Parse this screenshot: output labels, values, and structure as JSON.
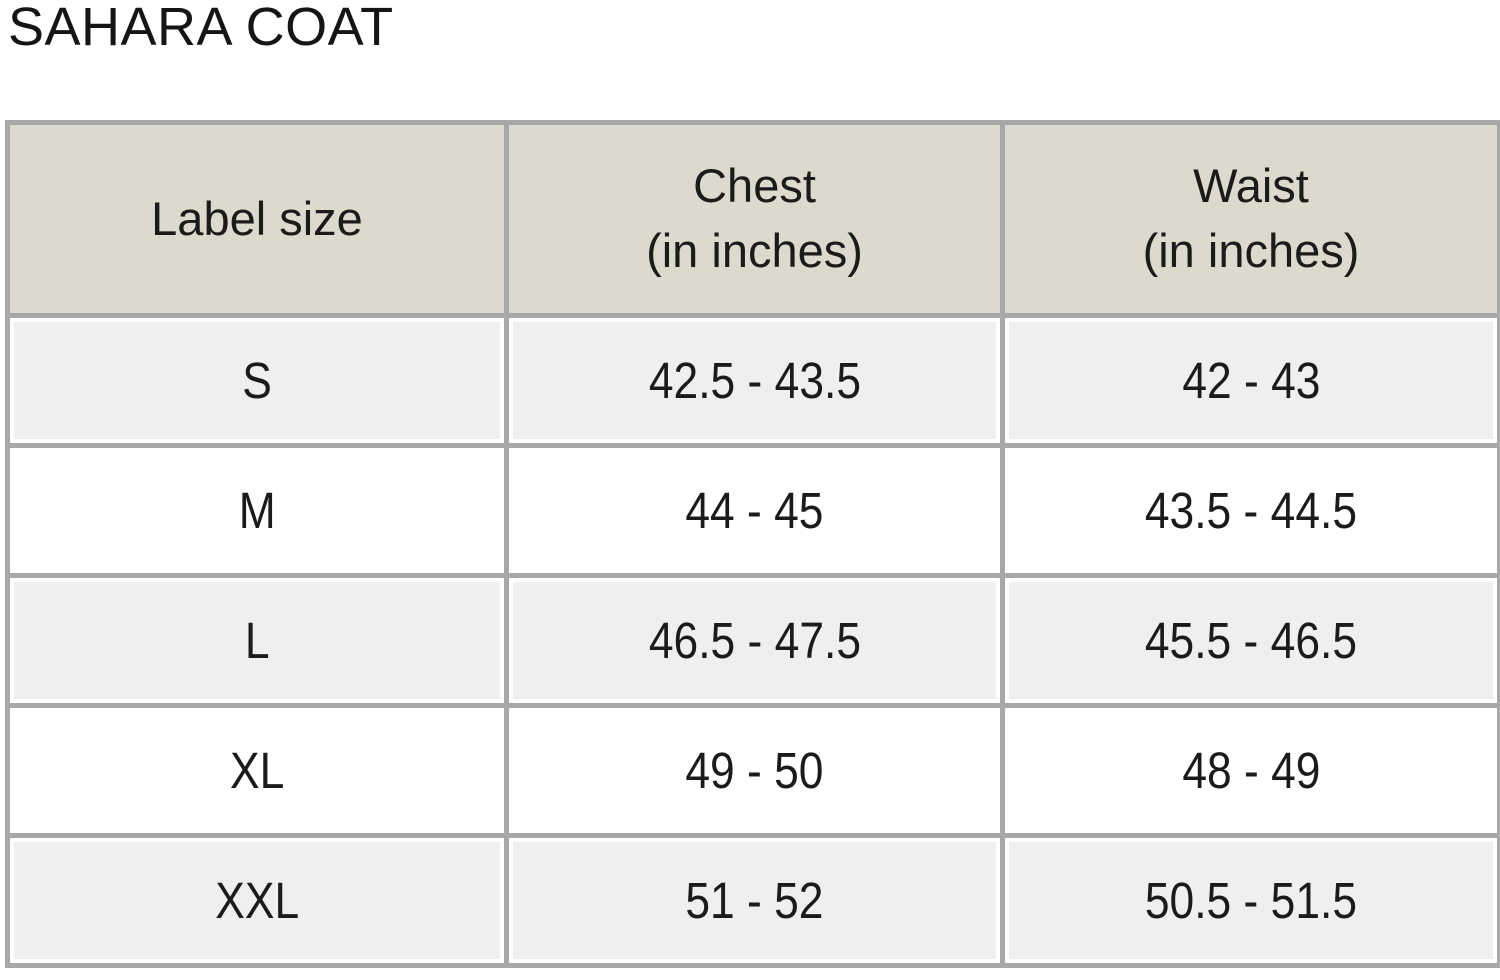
{
  "page": {
    "title": "SAHARA COAT"
  },
  "size_chart": {
    "columns": [
      "Label size",
      "Chest\n(in inches)",
      "Waist\n(in inches)"
    ],
    "rows": [
      {
        "size": "S",
        "chest": "42.5 - 43.5",
        "waist": "42 - 43"
      },
      {
        "size": "M",
        "chest": "44 - 45",
        "waist": "43.5 - 44.5"
      },
      {
        "size": "L",
        "chest": "46.5 - 47.5",
        "waist": "45.5 - 46.5"
      },
      {
        "size": "XL",
        "chest": "49 - 50",
        "waist": "48 - 49"
      },
      {
        "size": "XXL",
        "chest": "51 - 52",
        "waist": "50.5 - 51.5"
      }
    ],
    "colors": {
      "header_bg": "#dcdacd",
      "row_alt_bg": "#efefef",
      "row_bg": "#ffffff",
      "grid_border": "#a8a8a8",
      "text": "#1b1b1b"
    }
  }
}
